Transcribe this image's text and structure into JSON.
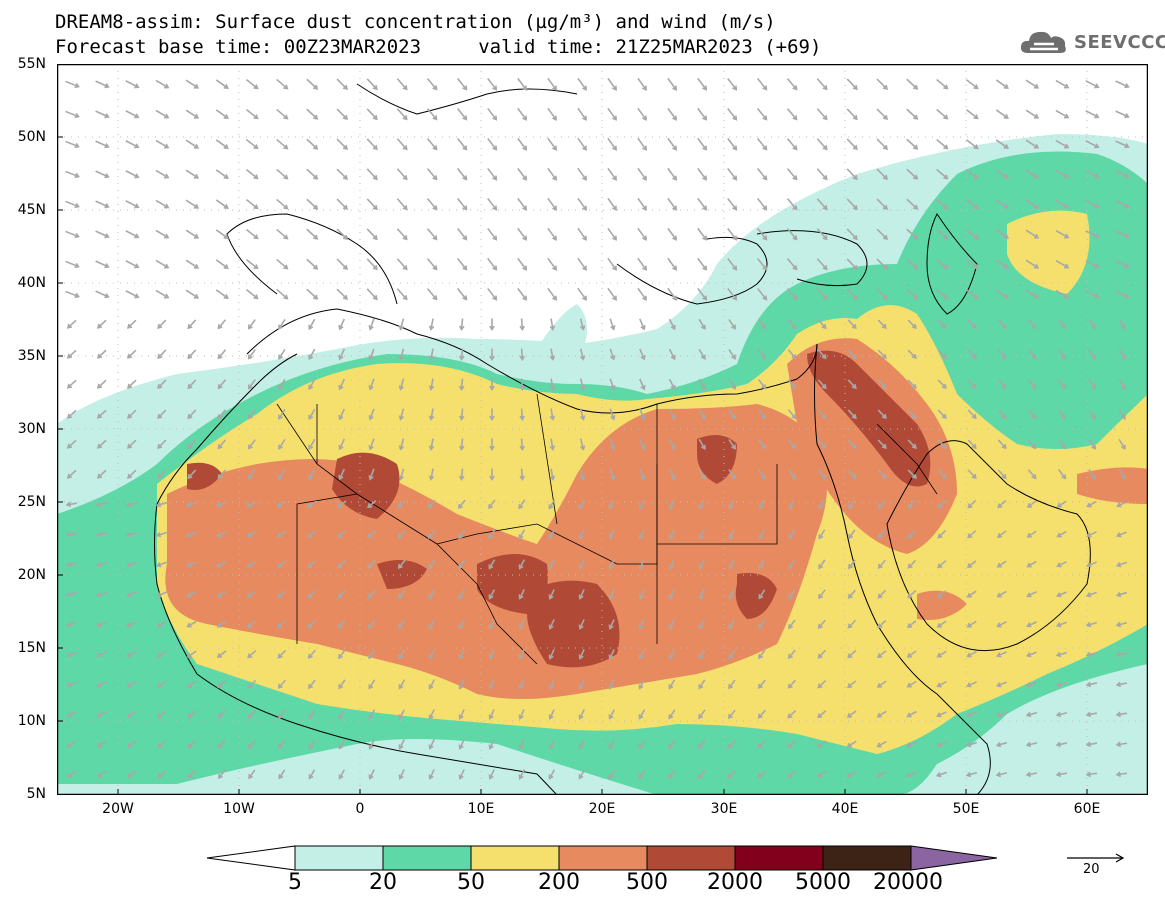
{
  "title": {
    "line1": "DREAM8-assim: Surface dust concentration (µg/m³) and wind (m/s)",
    "line2": "Forecast base time: 00Z23MAR2023     valid time: 21Z25MAR2023 (+69)"
  },
  "logo": {
    "text": "SEEVCCC",
    "icon": "cloud-icon"
  },
  "map": {
    "lon_range": [
      -25,
      65
    ],
    "lat_range": [
      5,
      55
    ],
    "lat_labels": [
      "55N",
      "50N",
      "45N",
      "40N",
      "35N",
      "30N",
      "25N",
      "20N",
      "15N",
      "10N",
      "5N"
    ],
    "lon_labels": [
      "20W",
      "10W",
      "0",
      "10E",
      "20E",
      "30E",
      "40E",
      "50E",
      "60E"
    ],
    "colors": {
      "c5": "#c4efe6",
      "c20": "#5ed8a6",
      "c50": "#f5e06e",
      "c200": "#e88a5f",
      "c500": "#b04a36",
      "c2000": "#82001c",
      "c5000": "#3d2216",
      "c20000": "#8b65a1",
      "wind_arrow": "#a8a8a8",
      "border": "#000000"
    }
  },
  "colorbar": {
    "labels": [
      "5",
      "20",
      "50",
      "200",
      "500",
      "2000",
      "5000",
      "20000"
    ],
    "colors": [
      "#c4efe6",
      "#5ed8a6",
      "#f5e06e",
      "#e88a5f",
      "#b04a36",
      "#82001c",
      "#3d2216"
    ],
    "extend_low_color": "#ffffff",
    "extend_high_color": "#8b65a1"
  },
  "wind_reference": {
    "value": "20"
  }
}
